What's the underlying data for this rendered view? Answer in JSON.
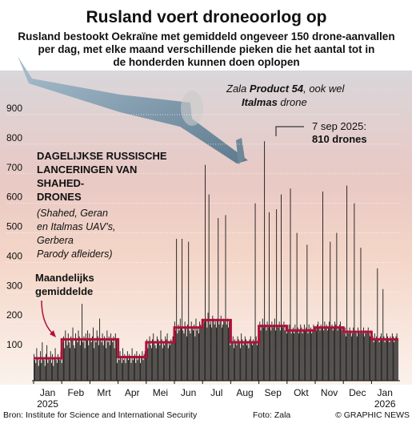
{
  "title": "Rusland voert droneoorlog op",
  "subtitle": [
    "Rusland bestookt Oekraïne met gemiddeld ongeveer 150 drone-aanvallen",
    "per dag, met elke maand verschillende pieken die het aantal tot in",
    "de honderden kunnen doen oplopen"
  ],
  "photo_caption": [
    "Zala ",
    "Product 54",
    ", ook wel",
    "Italmas",
    " drone"
  ],
  "footer": {
    "source": "Bron: Institute for Science and International Security",
    "photo": "Foto: Zala",
    "credit": "© GRAPHIC NEWS"
  },
  "chart_data": {
    "type": "bar",
    "series_label": {
      "title": [
        "DAGELIJKSE RUSSISCHE",
        "LANCERINGEN VAN",
        "SHAHED-",
        "DRONES"
      ],
      "note": [
        "(Shahed, Geran",
        "en Italmas UAV’s,",
        "Gerbera",
        "Parody afleiders)"
      ]
    },
    "annotation": [
      "7 sep 2025:",
      "810 drones"
    ],
    "categories": [
      "Jan",
      "Feb",
      "Mrt",
      "Apr",
      "Mei",
      "Jun",
      "Jul",
      "Aug",
      "Sep",
      "Okt",
      "Nov",
      "Dec",
      "Jan"
    ],
    "years": [
      "2025",
      "2026"
    ],
    "ylim": [
      0,
      900
    ],
    "yticks": [
      100,
      200,
      300,
      400,
      500,
      600,
      700,
      800,
      900
    ],
    "grid": true,
    "daily": {
      "color": "#111111",
      "values": [
        90,
        70,
        60,
        110,
        80,
        50,
        70,
        100,
        60,
        130,
        80,
        70,
        50,
        90,
        120,
        60,
        80,
        70,
        100,
        60,
        90,
        50,
        80,
        110,
        70,
        60,
        90,
        80,
        70,
        100,
        60,
        130,
        150,
        110,
        170,
        140,
        120,
        160,
        130,
        110,
        150,
        140,
        180,
        120,
        110,
        160,
        140,
        130,
        170,
        150,
        120,
        140,
        260,
        130,
        150,
        110,
        160,
        140,
        170,
        120,
        160,
        140,
        130,
        150,
        180,
        110,
        140,
        130,
        170,
        150,
        120,
        210,
        140,
        130,
        160,
        120,
        150,
        140,
        110,
        170,
        130,
        150,
        120,
        160,
        140,
        130,
        150,
        110,
        160,
        140,
        60,
        90,
        70,
        100,
        80,
        60,
        110,
        70,
        90,
        60,
        80,
        100,
        70,
        90,
        80,
        60,
        110,
        70,
        80,
        90,
        60,
        100,
        70,
        80,
        90,
        60,
        80,
        100,
        70,
        90,
        100,
        120,
        140,
        110,
        130,
        150,
        120,
        110,
        140,
        160,
        130,
        120,
        110,
        150,
        140,
        130,
        120,
        170,
        140,
        110,
        130,
        120,
        150,
        140,
        160,
        110,
        130,
        120,
        140,
        130,
        150,
        150,
        200,
        170,
        480,
        160,
        190,
        170,
        210,
        180,
        480,
        170,
        160,
        200,
        180,
        150,
        190,
        470,
        170,
        160,
        200,
        180,
        170,
        190,
        150,
        210,
        170,
        180,
        160,
        200,
        190,
        180,
        210,
        190,
        200,
        730,
        210,
        180,
        230,
        630,
        190,
        200,
        180,
        220,
        210,
        190,
        200,
        180,
        210,
        550,
        190,
        200,
        220,
        180,
        190,
        210,
        200,
        560,
        190,
        210,
        180,
        200,
        120,
        140,
        130,
        150,
        110,
        140,
        130,
        120,
        150,
        140,
        130,
        110,
        160,
        140,
        120,
        130,
        150,
        140,
        120,
        130,
        110,
        140,
        150,
        130,
        120,
        140,
        130,
        600,
        150,
        120,
        140,
        180,
        200,
        170,
        190,
        210,
        180,
        810,
        190,
        170,
        200,
        180,
        570,
        190,
        170,
        200,
        180,
        190,
        210,
        170,
        580,
        190,
        180,
        200,
        170,
        630,
        190,
        180,
        200,
        170,
        190,
        160,
        180,
        170,
        190,
        650,
        160,
        170,
        180,
        160,
        190,
        170,
        500,
        180,
        160,
        170,
        190,
        180,
        160,
        170,
        190,
        170,
        180,
        460,
        160,
        190,
        170,
        180,
        160,
        170,
        190,
        180,
        180,
        170,
        190,
        200,
        180,
        170,
        190,
        180,
        640,
        170,
        200,
        180,
        190,
        170,
        180,
        200,
        470,
        180,
        190,
        170,
        180,
        200,
        190,
        500,
        170,
        180,
        190,
        200,
        180,
        170,
        170,
        160,
        180,
        150,
        660,
        170,
        160,
        180,
        170,
        150,
        160,
        180,
        600,
        170,
        160,
        150,
        180,
        170,
        160,
        450,
        170,
        160,
        180,
        150,
        170,
        160,
        170,
        180,
        160,
        150,
        170,
        140,
        150,
        130,
        160,
        140,
        150,
        380,
        140,
        130,
        150,
        160,
        140,
        310,
        150,
        130,
        140,
        160,
        150,
        140,
        130,
        150,
        140,
        160,
        150,
        130,
        140,
        150,
        160,
        140
      ]
    },
    "monthly": {
      "name": [
        "Maandelijks",
        "gemiddelde"
      ],
      "color": "#b0103a",
      "values": [
        76,
        140,
        140,
        80,
        130,
        180,
        205,
        130,
        185,
        170,
        180,
        165,
        140
      ]
    }
  }
}
